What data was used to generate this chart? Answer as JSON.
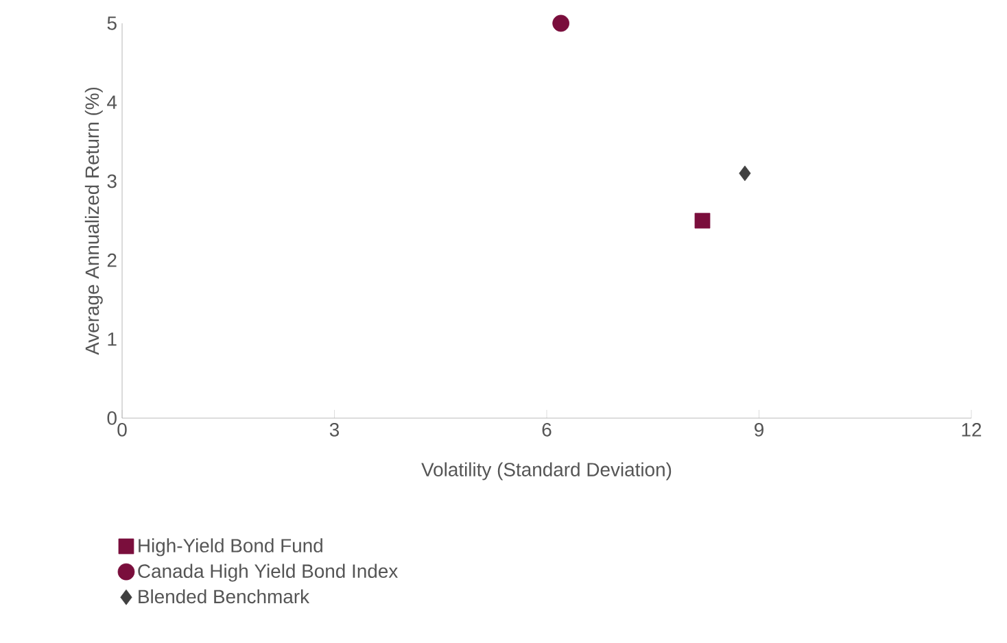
{
  "chart_data": {
    "type": "scatter",
    "xlabel": "Volatility (Standard Deviation)",
    "ylabel": "Average Annualized Return (%)",
    "xlim": [
      0,
      12
    ],
    "ylim": [
      0,
      5
    ],
    "xticks": [
      0,
      3,
      6,
      9,
      12
    ],
    "yticks": [
      0,
      1,
      2,
      3,
      4,
      5
    ],
    "grid": false,
    "legend": "bottom",
    "series": [
      {
        "name": "High-Yield Bond Fund",
        "color": "#7a0e3c",
        "marker": "square",
        "x": [
          8.2
        ],
        "values": [
          2.5
        ]
      },
      {
        "name": "Canada High Yield Bond Index",
        "color": "#7a0e3c",
        "marker": "circle",
        "x": [
          6.2
        ],
        "values": [
          5.0
        ]
      },
      {
        "name": "Blended Benchmark",
        "color": "#404040",
        "marker": "diamond",
        "x": [
          8.8
        ],
        "values": [
          3.1
        ]
      }
    ]
  }
}
